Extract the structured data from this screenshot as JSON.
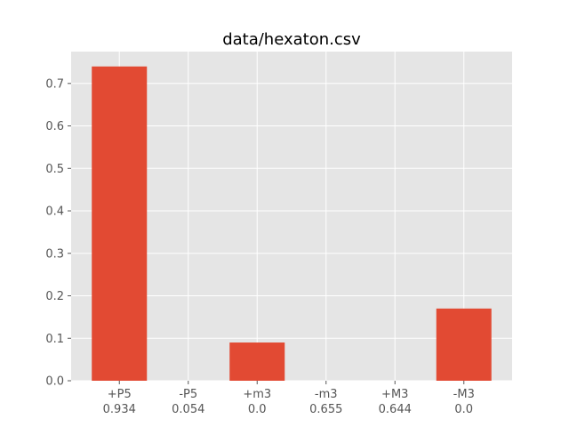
{
  "chart_data": {
    "type": "bar",
    "title": "data/hexaton.csv",
    "xlabel": "",
    "ylabel": "",
    "categories": [
      "+P5",
      "-P5",
      "+m3",
      "-m3",
      "+M3",
      "-M3"
    ],
    "category_sublabels": [
      "0.934",
      "0.054",
      "0.0",
      "0.655",
      "0.644",
      "0.0"
    ],
    "values": [
      0.74,
      0.0,
      0.09,
      0.0,
      0.0,
      0.17
    ],
    "ylim": [
      0,
      0.775
    ],
    "yticks": [
      0.0,
      0.1,
      0.2,
      0.3,
      0.4,
      0.5,
      0.6,
      0.7
    ],
    "ytick_labels": [
      "0.0",
      "0.1",
      "0.2",
      "0.3",
      "0.4",
      "0.5",
      "0.6",
      "0.7"
    ],
    "grid": true,
    "legend": "none",
    "colors": {
      "bar": "#E24A33",
      "plot_background": "#E5E5E5",
      "grid": "#FFFFFF",
      "tick_label": "#555555",
      "title": "#000000"
    }
  }
}
